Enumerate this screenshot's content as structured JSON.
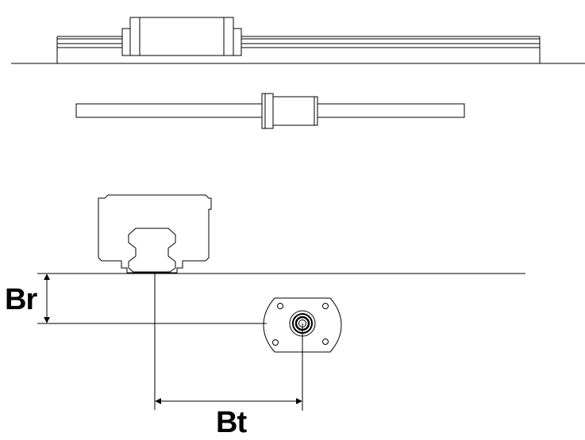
{
  "labels": {
    "br": "Br",
    "bt": "Bt"
  },
  "colors": {
    "line": "#000000",
    "background": "#ffffff"
  }
}
